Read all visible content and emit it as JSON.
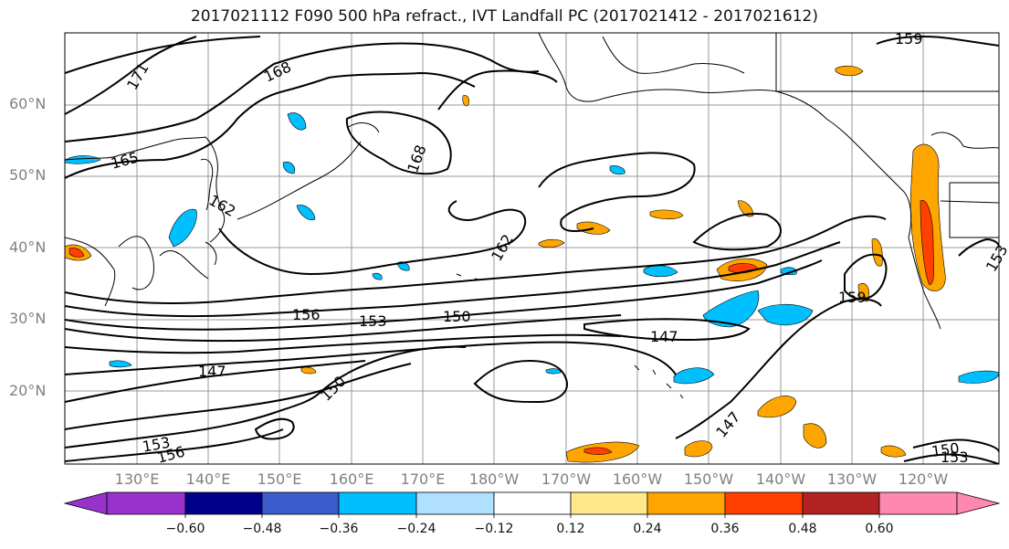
{
  "title": "2017021112 F090 500 hPa refract., IVT Landfall PC (2017021412 - 2017021612)",
  "lat_labels": [
    "60°N",
    "50°N",
    "40°N",
    "30°N",
    "20°N"
  ],
  "lon_labels": [
    "130°E",
    "140°E",
    "150°E",
    "160°E",
    "170°E",
    "180°W",
    "170°W",
    "160°W",
    "150°W",
    "140°W",
    "130°W",
    "120°W"
  ],
  "contour_labels": [
    "171",
    "168",
    "165",
    "168",
    "162",
    "162",
    "156",
    "153",
    "150",
    "159",
    "147",
    "147",
    "150",
    "147",
    "153",
    "156",
    "150",
    "153",
    "159",
    "153"
  ],
  "colorbar": {
    "ticks": [
      "−0.60",
      "−0.48",
      "−0.36",
      "−0.24",
      "−0.12",
      "0.12",
      "0.24",
      "0.36",
      "0.48",
      "0.60"
    ],
    "colors": [
      "#9932cc",
      "#00008b",
      "#3a5bcc",
      "#00bfff",
      "#b0e0ff",
      "#ffffff",
      "#ffe88a",
      "#ffa500",
      "#ff4000",
      "#b22222",
      "#ff88b0"
    ]
  }
}
